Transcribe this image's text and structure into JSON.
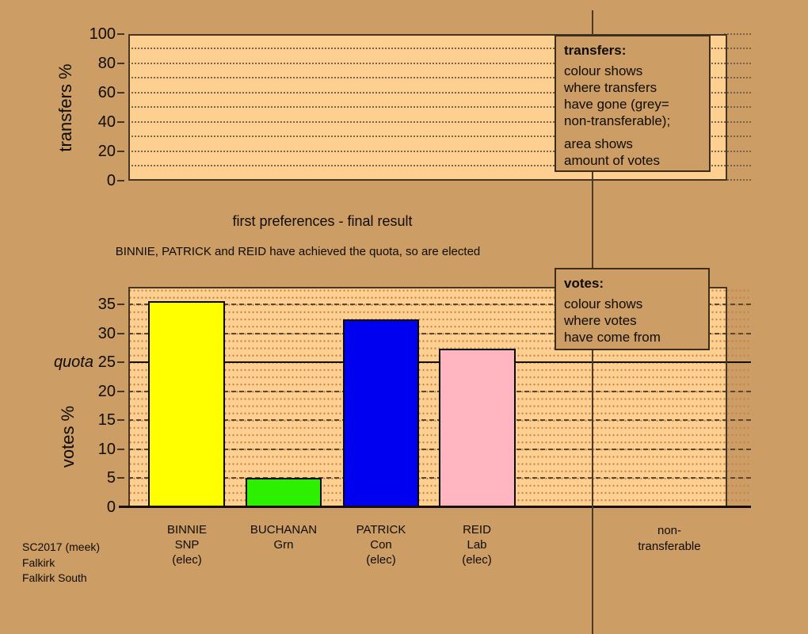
{
  "titles": {
    "title": "first preferences - final result",
    "subtitle": "BINNIE, PATRICK and REID have achieved the quota, so are elected"
  },
  "transfers_panel": {
    "axis_label": "transfers %",
    "ticks": [
      "100",
      "80",
      "60",
      "40",
      "20",
      "0"
    ]
  },
  "votes_panel": {
    "axis_label": "votes %",
    "quota_label": "quota",
    "ticks": [
      "35",
      "30",
      "25",
      "20",
      "15",
      "10",
      "5",
      "0"
    ]
  },
  "legend_transfers": {
    "heading": "transfers:",
    "body1": "colour shows\nwhere transfers\nhave gone (grey=\nnon-transferable);",
    "body2": "area shows\namount of votes"
  },
  "legend_votes": {
    "heading": "votes:",
    "body": "colour shows\nwhere votes\nhave come from"
  },
  "candidates": [
    {
      "name": "BINNIE",
      "party": "SNP",
      "status": "(elec)",
      "pct": 35.6,
      "color": "#ffff00"
    },
    {
      "name": "BUCHANAN",
      "party": "Grn",
      "status": "",
      "pct": 5.1,
      "color": "#2cf000"
    },
    {
      "name": "PATRICK",
      "party": "Con",
      "status": "(elec)",
      "pct": 32.4,
      "color": "#0000f0"
    },
    {
      "name": "REID",
      "party": "Lab",
      "status": "(elec)",
      "pct": 27.3,
      "color": "#ffb6c1"
    }
  ],
  "non_transferable_label": "non-\ntransferable",
  "footer": {
    "line1": "SC2017 (meek)",
    "line2": "Falkirk",
    "line3": "Falkirk South"
  },
  "colors": {
    "page_background": "#cc9d65",
    "plot_fill": "#fdd092",
    "grid_dashed": "#5b462e",
    "quota_line": "#150f08",
    "grey_note": "grey = non-transferable"
  },
  "chart_data": [
    {
      "type": "bar",
      "panel": "transfers",
      "ylabel": "transfers %",
      "ylim": [
        0,
        100
      ],
      "yticks": [
        0,
        20,
        40,
        60,
        80,
        100
      ],
      "grid": "dotted horizontal every 10",
      "series": [],
      "annotation": "panel empty at first-preferences stage"
    },
    {
      "type": "bar",
      "panel": "votes",
      "title": "first preferences - final result",
      "annotation": "BINNIE, PATRICK and REID have achieved the quota, so are elected",
      "ylabel": "votes %",
      "ylim": [
        0,
        38
      ],
      "yticks": [
        0,
        5,
        10,
        15,
        20,
        25,
        30,
        35
      ],
      "quota": 25,
      "categories": [
        "BINNIE SNP (elec)",
        "BUCHANAN Grn",
        "PATRICK Con (elec)",
        "REID Lab (elec)",
        "non-transferable"
      ],
      "values": [
        35.6,
        5.1,
        32.4,
        27.3,
        null
      ],
      "bar_colors": [
        "#ffff00",
        "#2cf000",
        "#0000f0",
        "#ffb6c1",
        null
      ],
      "grid": "dashed horizontal every 5, dotted minor rows; solid quota line at 25",
      "legend_position": "overlay boxes at right"
    }
  ]
}
